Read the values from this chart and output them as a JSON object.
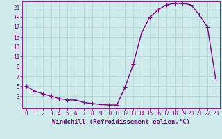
{
  "x": [
    0,
    1,
    2,
    3,
    4,
    5,
    6,
    7,
    8,
    9,
    10,
    11,
    12,
    13,
    14,
    15,
    16,
    17,
    18,
    19,
    20,
    21,
    22,
    23
  ],
  "y": [
    5,
    4,
    3.5,
    3,
    2.5,
    2.2,
    2.2,
    1.7,
    1.5,
    1.3,
    1.2,
    1.2,
    4.8,
    9.5,
    15.8,
    19,
    20.5,
    21.5,
    21.8,
    21.8,
    21.5,
    19.5,
    17,
    6.5
  ],
  "line_color": "#800080",
  "marker_color": "#800080",
  "bg_color": "#ceeaea",
  "grid_color": "#b0d4d4",
  "xlabel": "Windchill (Refroidissement éolien,°C)",
  "xlim_min": -0.5,
  "xlim_max": 23.5,
  "ylim_min": 0.5,
  "ylim_max": 22.2,
  "yticks": [
    1,
    3,
    5,
    7,
    9,
    11,
    13,
    15,
    17,
    19,
    21
  ],
  "xticks": [
    0,
    1,
    2,
    3,
    4,
    5,
    6,
    7,
    8,
    9,
    10,
    11,
    12,
    13,
    14,
    15,
    16,
    17,
    18,
    19,
    20,
    21,
    22,
    23
  ],
  "tick_fontsize": 5.5,
  "xlabel_fontsize": 6.5,
  "line_width": 1.0,
  "marker_size": 2.0
}
